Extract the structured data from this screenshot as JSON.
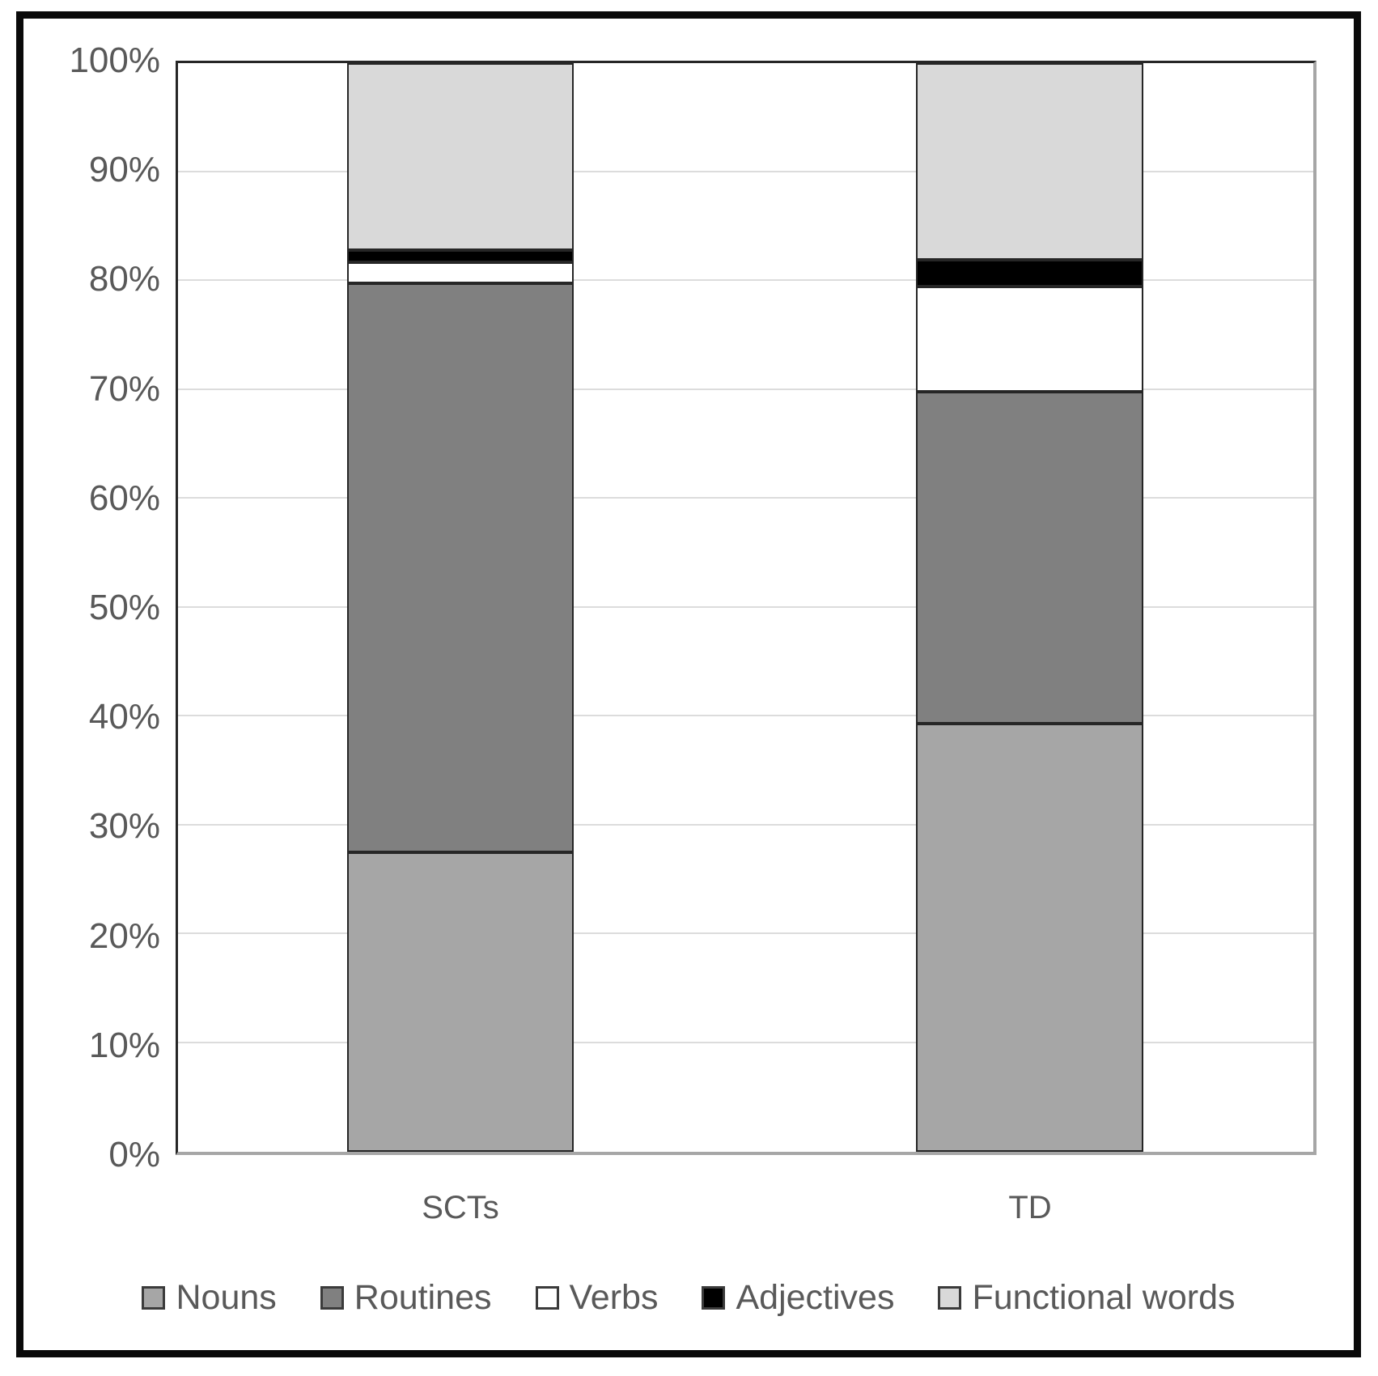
{
  "chart_data": {
    "type": "bar",
    "subtype": "stacked-100-percent",
    "title": "",
    "xlabel": "",
    "ylabel": "",
    "categories": [
      "SCTs",
      "TD"
    ],
    "series": [
      {
        "name": "Nouns",
        "color": "#a6a6a6",
        "values": [
          27.5,
          39.3
        ]
      },
      {
        "name": "Routines",
        "color": "#808080",
        "values": [
          52.3,
          30.5
        ]
      },
      {
        "name": "Verbs",
        "color": "#ffffff",
        "values": [
          1.9,
          9.7
        ]
      },
      {
        "name": "Adjectives",
        "color": "#000000",
        "values": [
          1.1,
          2.4
        ]
      },
      {
        "name": "Functional words",
        "color": "#d9d9d9",
        "values": [
          17.2,
          18.1
        ]
      }
    ],
    "y_axis": {
      "min": 0,
      "max": 100,
      "tick_step": 10,
      "format": "percent",
      "tick_labels": [
        "0%",
        "10%",
        "20%",
        "30%",
        "40%",
        "50%",
        "60%",
        "70%",
        "80%",
        "90%",
        "100%"
      ]
    },
    "grid": true,
    "legend_position": "bottom"
  },
  "palette": {
    "gridline": "#dcdcdc",
    "axis_text": "#595959",
    "segment_border": "#262626",
    "plot_border_dark": "#262626",
    "plot_border_light": "#a6a6a6",
    "outer_frame": "#0a0a0a"
  }
}
